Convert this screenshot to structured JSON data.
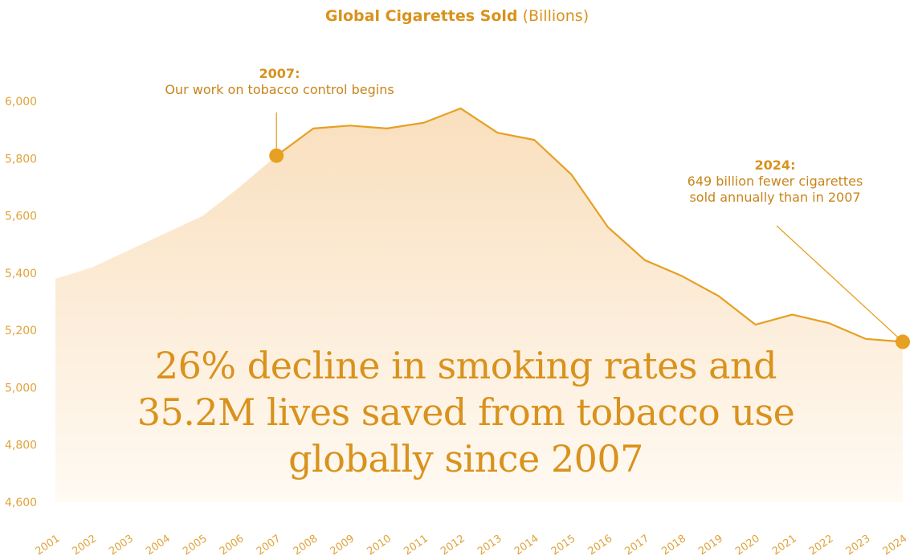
{
  "title": {
    "bold": "Global Cigarettes Sold",
    "rest": "(Billions)"
  },
  "annotations": [
    {
      "year": 2007,
      "head": "2007:",
      "text": "Our work on tobacco control begins"
    },
    {
      "year": 2024,
      "head": "2024:",
      "line1": "649 billion fewer cigarettes",
      "line2": "sold annually than in 2007"
    }
  ],
  "headline": {
    "line1": "26% decline in smoking rates and",
    "line2": "35.2M lives saved from tobacco use",
    "line3": "globally since 2007"
  },
  "colors": {
    "line": "#e6a023",
    "marker": "#e8a020",
    "area_top": "#f9dfbd",
    "area_bottom": "#fffaf3",
    "text": "#d9921c"
  },
  "chart_data": {
    "type": "area",
    "title": "Global Cigarettes Sold (Billions)",
    "ylim": [
      4600,
      6000
    ],
    "yticks": [
      4600,
      4800,
      5000,
      5200,
      5400,
      5600,
      5800,
      6000
    ],
    "ytick_labels": [
      "4,600",
      "4,800",
      "5,000",
      "5,200",
      "5,400",
      "5,600",
      "5,800",
      "6,000"
    ],
    "x": [
      2001,
      2002,
      2003,
      2004,
      2005,
      2006,
      2007,
      2008,
      2009,
      2010,
      2011,
      2012,
      2013,
      2014,
      2015,
      2016,
      2017,
      2018,
      2019,
      2020,
      2021,
      2022,
      2023,
      2024
    ],
    "values": [
      5380,
      5420,
      5480,
      5540,
      5600,
      5700,
      5810,
      5905,
      5915,
      5905,
      5925,
      5975,
      5890,
      5865,
      5745,
      5560,
      5445,
      5390,
      5320,
      5220,
      5255,
      5225,
      5170,
      5160
    ],
    "highlight_years": [
      2007,
      2024
    ],
    "line_starts_year": 2007,
    "grid": false,
    "legend": "none"
  }
}
